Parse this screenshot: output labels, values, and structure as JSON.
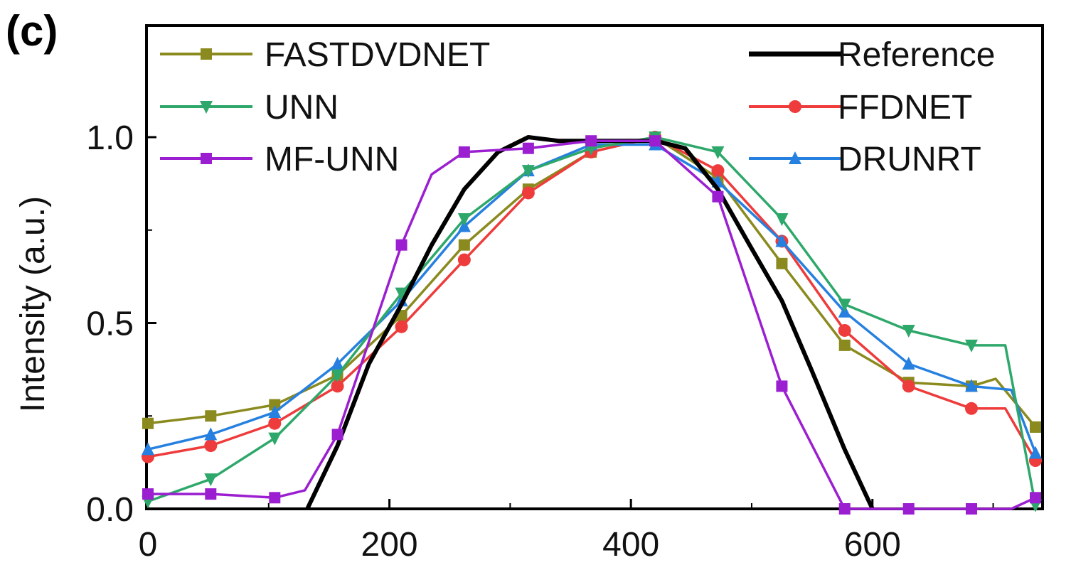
{
  "panel_label": "(c)",
  "chart_data": {
    "type": "line",
    "title": "",
    "xlabel": "",
    "ylabel": "Intensity (a.u.)",
    "xlim": [
      0,
      735
    ],
    "ylim": [
      0,
      1.25
    ],
    "x_ticks": [
      0,
      200,
      400,
      600
    ],
    "y_ticks": [
      0.0,
      0.5,
      1.0
    ],
    "x_tick_labels": [
      "0",
      "200",
      "400",
      "600"
    ],
    "y_tick_labels": [
      "0.0",
      "0.5",
      "1.0"
    ],
    "grid": false,
    "legend_placement": "top, two columns",
    "series": [
      {
        "name": "FASTDVDNET",
        "color": "#8a8a1e",
        "marker": "square",
        "x": [
          0,
          52,
          105,
          157,
          210,
          262,
          315,
          367,
          420,
          472,
          525,
          577,
          630,
          682,
          702,
          735
        ],
        "y": [
          0.23,
          0.25,
          0.28,
          0.36,
          0.52,
          0.71,
          0.86,
          0.96,
          1.0,
          0.89,
          0.66,
          0.44,
          0.34,
          0.33,
          0.35,
          0.22
        ]
      },
      {
        "name": "UNN",
        "color": "#2ea86a",
        "marker": "triangle-down",
        "x": [
          0,
          52,
          105,
          157,
          210,
          262,
          315,
          367,
          420,
          472,
          525,
          577,
          630,
          682,
          710,
          735
        ],
        "y": [
          0.02,
          0.08,
          0.19,
          0.36,
          0.58,
          0.78,
          0.91,
          0.97,
          1.0,
          0.96,
          0.78,
          0.55,
          0.48,
          0.44,
          0.44,
          0.01
        ]
      },
      {
        "name": "MF-UNN",
        "color": "#9b1fd0",
        "marker": "square",
        "x": [
          0,
          52,
          105,
          130,
          157,
          210,
          235,
          262,
          315,
          367,
          420,
          472,
          525,
          577,
          630,
          682,
          715,
          735
        ],
        "y": [
          0.04,
          0.04,
          0.03,
          0.05,
          0.2,
          0.71,
          0.9,
          0.96,
          0.97,
          0.99,
          0.99,
          0.84,
          0.33,
          0.0,
          0.0,
          0.0,
          0.0,
          0.03
        ]
      },
      {
        "name": "Reference",
        "color": "#000000",
        "marker": "none",
        "x": [
          132,
          157,
          183,
          210,
          235,
          262,
          290,
          315,
          340,
          367,
          395,
          420,
          445,
          472,
          500,
          525,
          550,
          577,
          600
        ],
        "y": [
          0.0,
          0.17,
          0.39,
          0.55,
          0.71,
          0.86,
          0.96,
          1.0,
          0.99,
          0.99,
          0.99,
          0.99,
          0.97,
          0.86,
          0.7,
          0.56,
          0.37,
          0.16,
          0.0
        ]
      },
      {
        "name": "FFDNET",
        "color": "#ee3b3b",
        "marker": "circle",
        "x": [
          0,
          52,
          105,
          157,
          210,
          262,
          315,
          367,
          420,
          472,
          525,
          577,
          630,
          682,
          710,
          735
        ],
        "y": [
          0.14,
          0.17,
          0.23,
          0.33,
          0.49,
          0.67,
          0.85,
          0.96,
          1.0,
          0.91,
          0.72,
          0.48,
          0.33,
          0.27,
          0.27,
          0.13
        ]
      },
      {
        "name": "DRUNRT",
        "color": "#2680e0",
        "marker": "triangle-up",
        "x": [
          0,
          52,
          105,
          157,
          210,
          262,
          315,
          367,
          420,
          472,
          525,
          577,
          630,
          682,
          715,
          735
        ],
        "y": [
          0.16,
          0.2,
          0.26,
          0.39,
          0.56,
          0.76,
          0.91,
          0.98,
          0.98,
          0.88,
          0.72,
          0.53,
          0.39,
          0.33,
          0.32,
          0.15
        ]
      }
    ]
  }
}
